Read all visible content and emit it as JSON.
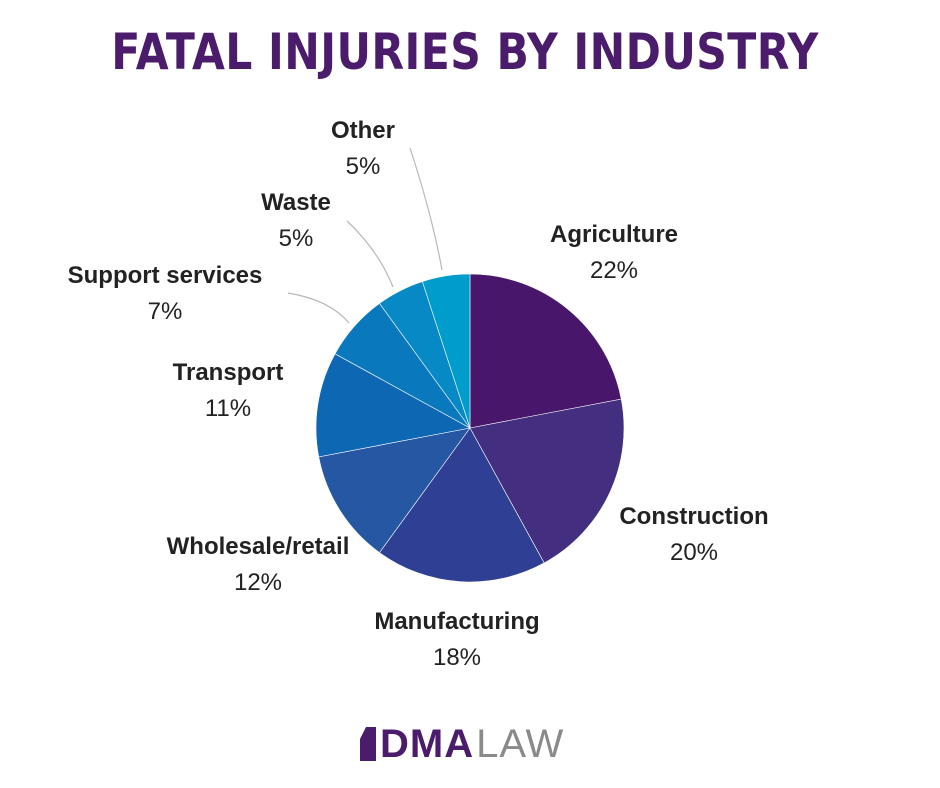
{
  "chart_data": {
    "type": "pie",
    "title": "FATAL INJURIES BY INDUSTRY",
    "slices": [
      {
        "label": "Agriculture",
        "value": 22,
        "display": "22%",
        "color": "#48176b"
      },
      {
        "label": "Construction",
        "value": 20,
        "display": "20%",
        "color": "#432e80"
      },
      {
        "label": "Manufacturing",
        "value": 18,
        "display": "18%",
        "color": "#2f3f94"
      },
      {
        "label": "Wholesale/retail",
        "value": 12,
        "display": "12%",
        "color": "#2557a2"
      },
      {
        "label": "Transport",
        "value": 11,
        "display": "11%",
        "color": "#0e67b2"
      },
      {
        "label": "Support services",
        "value": 7,
        "display": "7%",
        "color": "#0a78bc"
      },
      {
        "label": "Waste",
        "value": 5,
        "display": "5%",
        "color": "#0789c5"
      },
      {
        "label": "Other",
        "value": 5,
        "display": "5%",
        "color": "#009ccc"
      }
    ],
    "start": "12 o'clock",
    "direction": "clockwise",
    "legend": "none"
  },
  "logo": {
    "dma": "DMA",
    "law": "LAW",
    "dma_color": "#4a1c6b",
    "law_color": "#8a8a8a"
  }
}
